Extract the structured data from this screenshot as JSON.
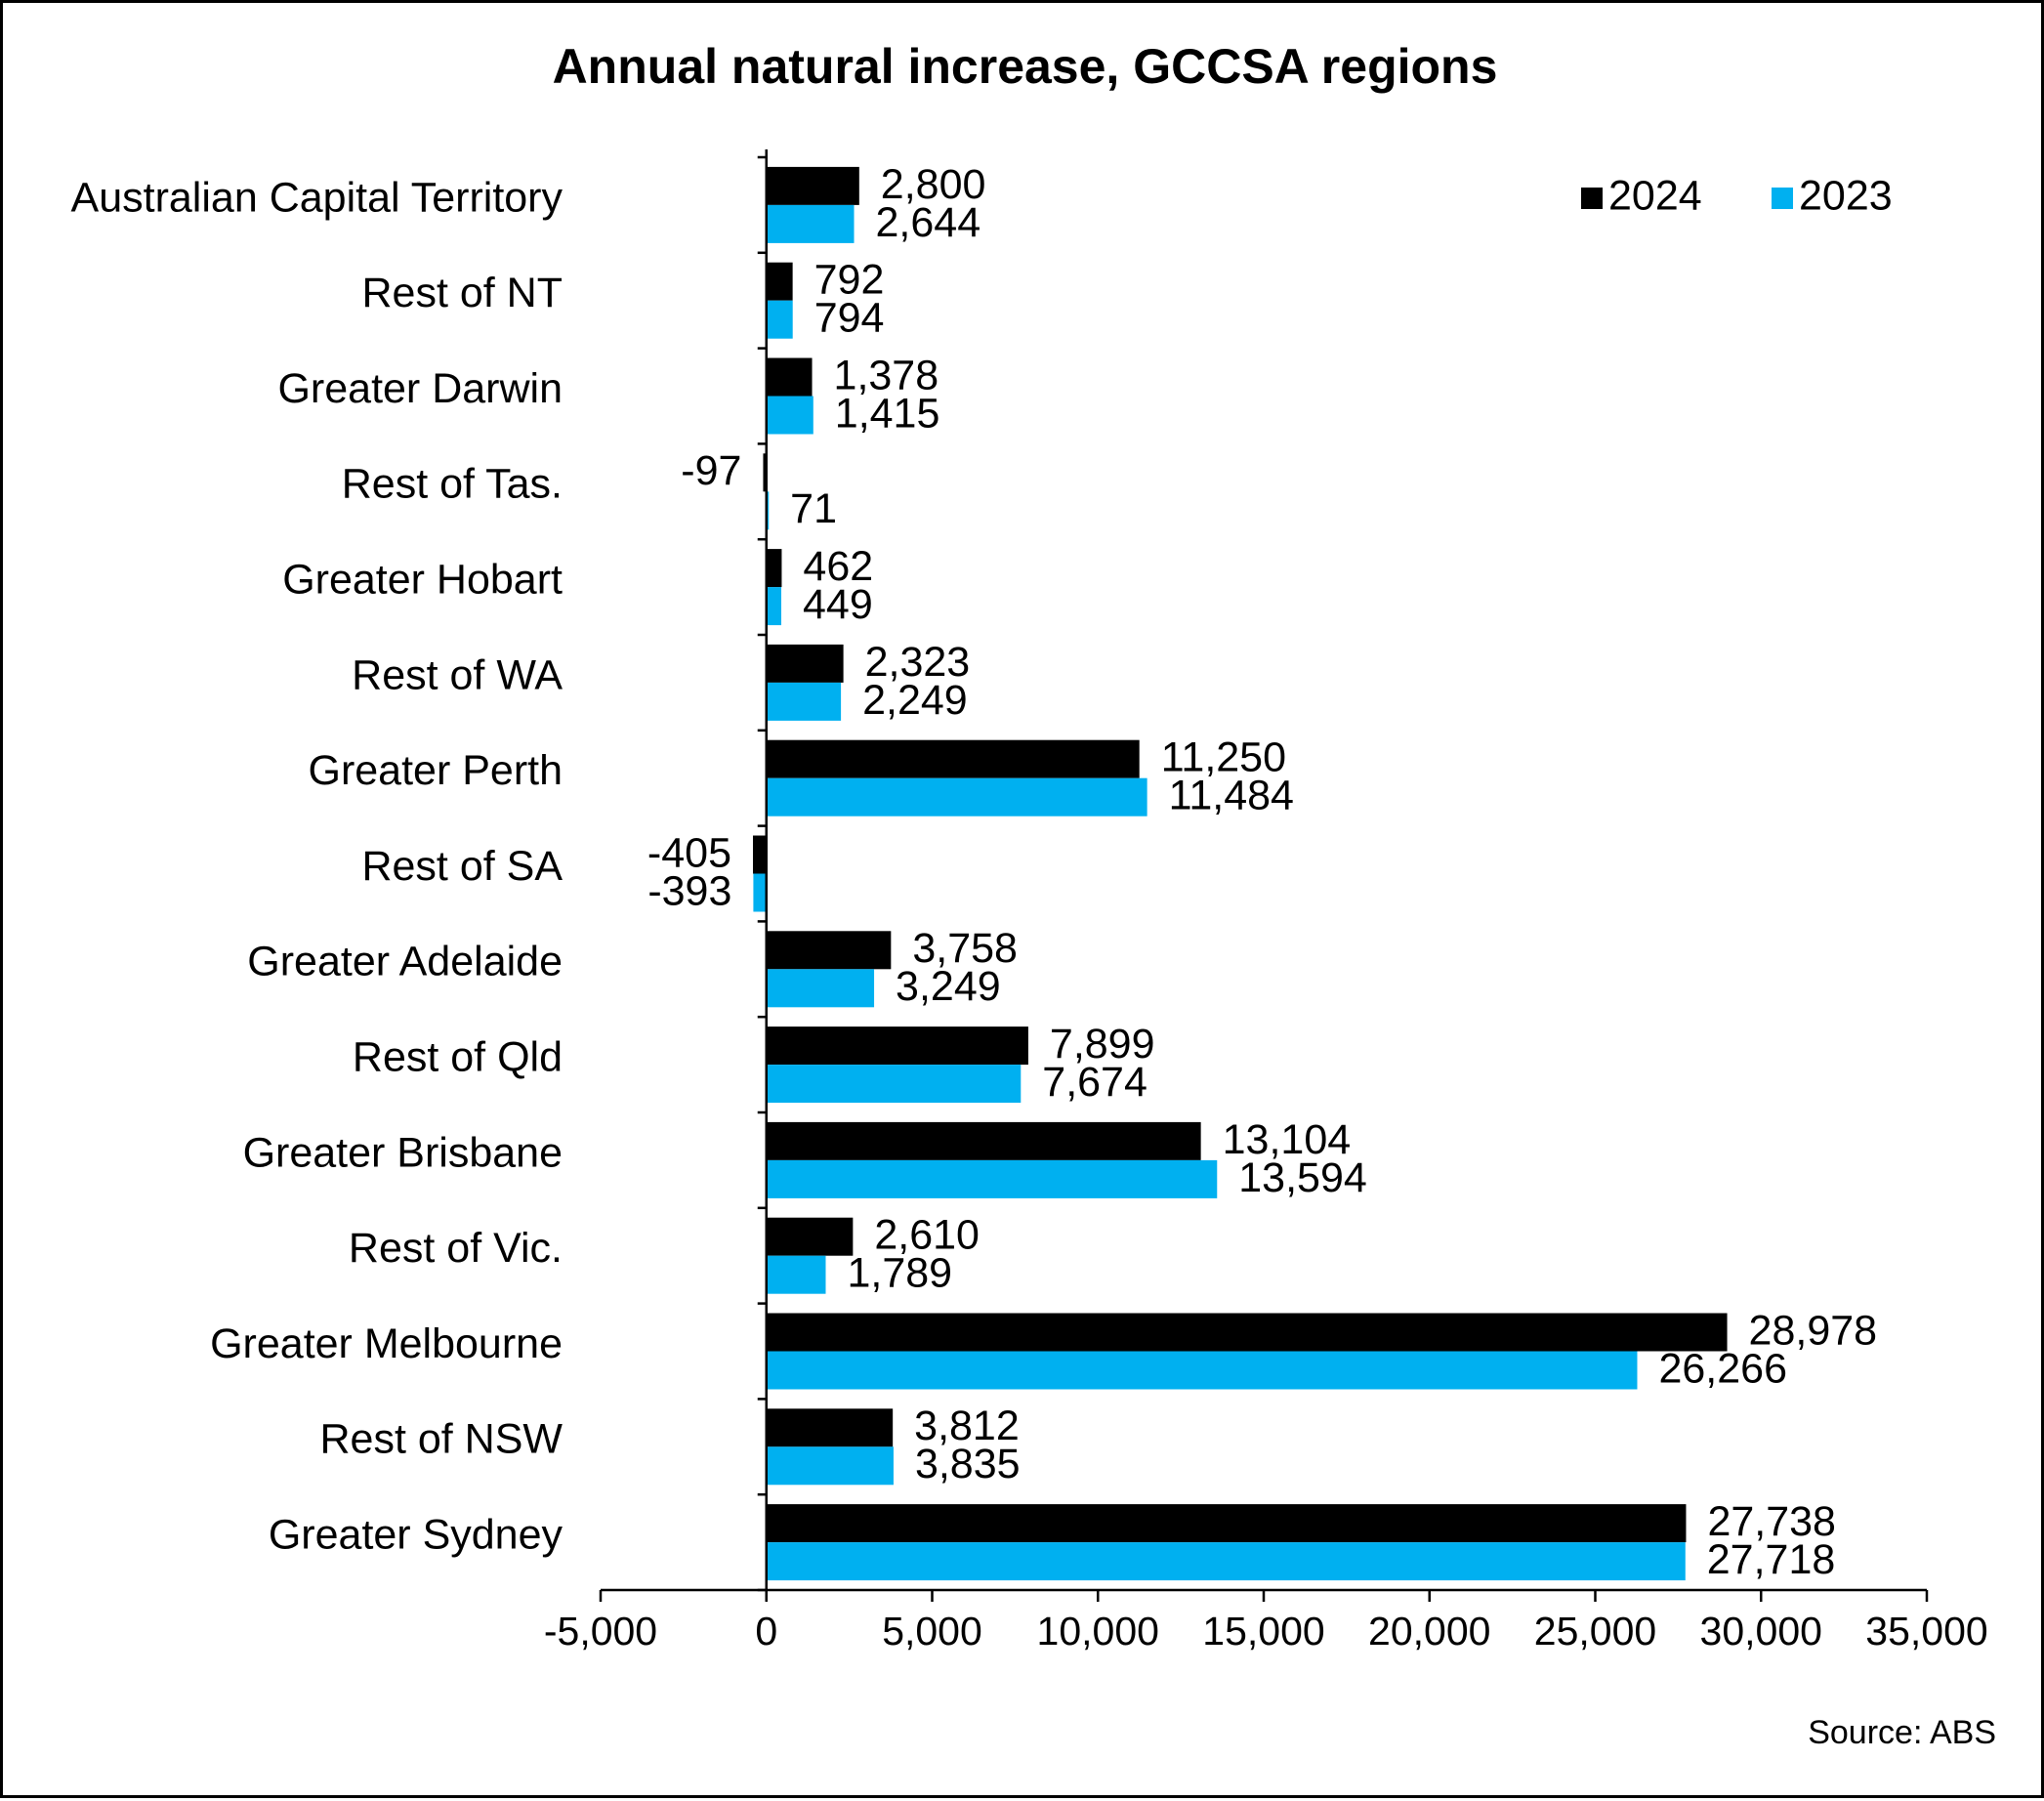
{
  "chart_data": {
    "type": "bar",
    "orientation": "horizontal",
    "title": "Annual natural increase, GCCSA regions",
    "source": "Source: ABS",
    "categories": [
      "Australian Capital Territory",
      "Rest of NT",
      "Greater Darwin",
      "Rest of Tas.",
      "Greater Hobart",
      "Rest of WA",
      "Greater Perth",
      "Rest of SA",
      "Greater Adelaide",
      "Rest of Qld",
      "Greater Brisbane",
      "Rest of Vic.",
      "Greater Melbourne",
      "Rest of NSW",
      "Greater Sydney"
    ],
    "series": [
      {
        "name": "2024",
        "color": "#000000",
        "values": [
          2800,
          792,
          1378,
          -97,
          462,
          2323,
          11250,
          -405,
          3758,
          7899,
          13104,
          2610,
          28978,
          3812,
          27738
        ],
        "labels": [
          "2,800",
          "792",
          "1,378",
          "-97",
          "462",
          "2,323",
          "11,250",
          "-405",
          "3,758",
          "7,899",
          "13,104",
          "2,610",
          "28,978",
          "3,812",
          "27,738"
        ]
      },
      {
        "name": "2023",
        "color": "#00B0F0",
        "values": [
          2644,
          794,
          1415,
          71,
          449,
          2249,
          11484,
          -393,
          3249,
          7674,
          13594,
          1789,
          26266,
          3835,
          27718
        ],
        "labels": [
          "2,644",
          "794",
          "1,415",
          "71",
          "449",
          "2,249",
          "11,484",
          "-393",
          "3,249",
          "7,674",
          "13,594",
          "1,789",
          "26,266",
          "3,835",
          "27,718"
        ]
      }
    ],
    "xlim": [
      -5000,
      35000
    ],
    "xticks": [
      -5000,
      0,
      5000,
      10000,
      15000,
      20000,
      25000,
      30000,
      35000
    ],
    "xtick_labels": [
      "-5,000",
      "0",
      "5,000",
      "10,000",
      "15,000",
      "20,000",
      "25,000",
      "30,000",
      "35,000"
    ],
    "xlabel": "",
    "ylabel": "",
    "grid": false,
    "legend_position": "top-right"
  }
}
